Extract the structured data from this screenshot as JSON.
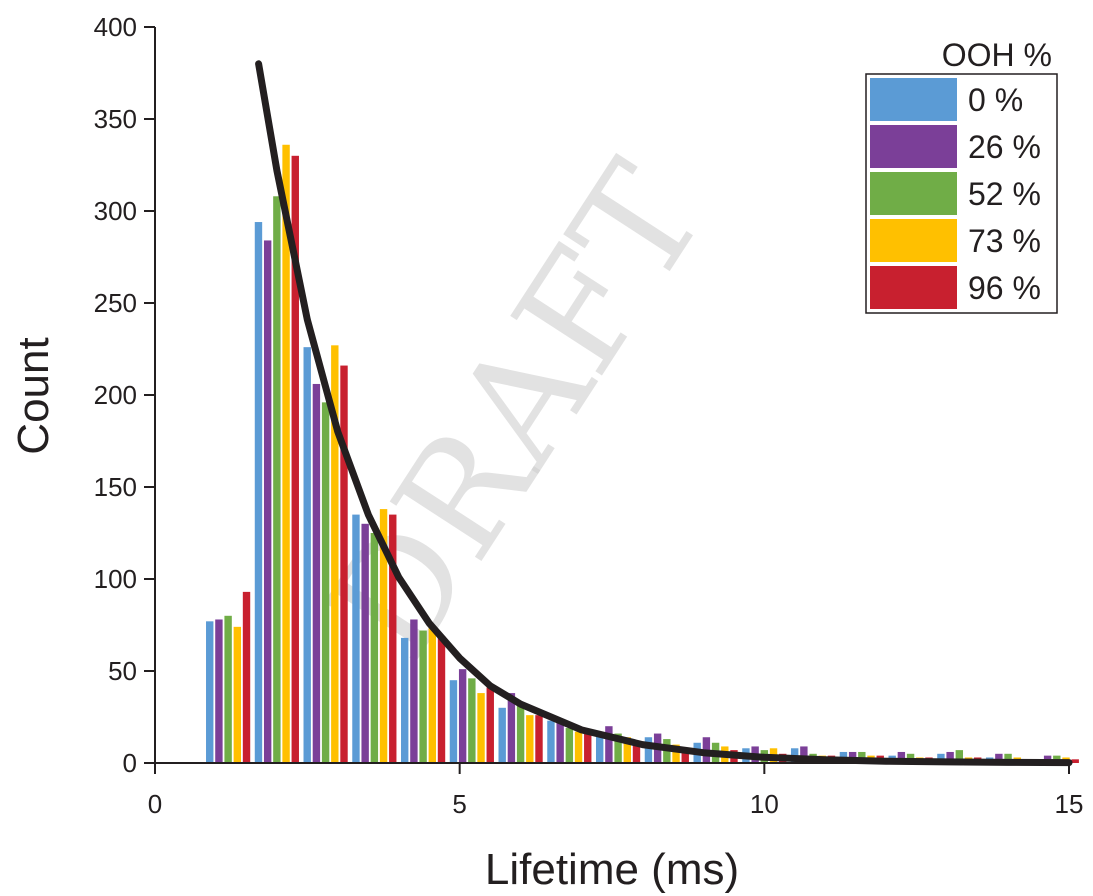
{
  "chart_data": {
    "type": "bar",
    "xlabel": "Lifetime (ms)",
    "ylabel": "Count",
    "xlim": [
      0,
      15
    ],
    "ylim": [
      0,
      400
    ],
    "x_ticks": [
      "0",
      "5",
      "10",
      "15"
    ],
    "y_ticks": [
      "0",
      "50",
      "100",
      "150",
      "200",
      "250",
      "300",
      "350",
      "400"
    ],
    "x_tick_values": [
      0,
      5,
      10,
      15
    ],
    "y_tick_values": [
      0,
      50,
      100,
      150,
      200,
      250,
      300,
      350,
      400
    ],
    "bin_centers": [
      1.2,
      2.0,
      2.8,
      3.6,
      4.4,
      5.2,
      6.0,
      6.8,
      7.6,
      8.4,
      9.2,
      10.0,
      10.8,
      11.6,
      12.4,
      13.2,
      14.0,
      14.8
    ],
    "legend_title": "OOH %",
    "legend_position": "top-right",
    "series": [
      {
        "name": "0 %",
        "color": "#5b9bd5",
        "values": [
          77,
          294,
          226,
          135,
          68,
          45,
          30,
          23,
          17,
          14,
          11,
          8,
          8,
          6,
          4,
          5,
          3,
          2
        ]
      },
      {
        "name": "26 %",
        "color": "#7b3f98",
        "values": [
          78,
          284,
          206,
          130,
          78,
          51,
          38,
          22,
          20,
          16,
          14,
          9,
          9,
          6,
          6,
          6,
          5,
          4
        ]
      },
      {
        "name": "52 %",
        "color": "#70ad47",
        "values": [
          80,
          308,
          196,
          125,
          72,
          46,
          33,
          19,
          16,
          13,
          11,
          7,
          5,
          6,
          5,
          7,
          5,
          4
        ]
      },
      {
        "name": "73 %",
        "color": "#ffc000",
        "values": [
          74,
          336,
          227,
          138,
          74,
          38,
          26,
          17,
          14,
          10,
          9,
          8,
          4,
          4,
          3,
          3,
          3,
          3
        ]
      },
      {
        "name": "96 %",
        "color": "#c8202f",
        "values": [
          93,
          330,
          216,
          135,
          69,
          41,
          26,
          17,
          12,
          8,
          7,
          5,
          4,
          4,
          3,
          3,
          2,
          2
        ]
      }
    ],
    "fit_curve": {
      "color": "#231f20",
      "x": [
        1.7,
        2.0,
        2.5,
        3.0,
        3.5,
        4.0,
        4.5,
        5.0,
        5.5,
        6.0,
        7.0,
        8.0,
        9.0,
        10.0,
        11.0,
        12.0,
        13.0,
        14.0,
        15.0
      ],
      "y": [
        380,
        322,
        241,
        180,
        135,
        101,
        76,
        57,
        42,
        32,
        18,
        10,
        5.6,
        3.1,
        1.8,
        1.0,
        0.6,
        0.3,
        0.2
      ]
    },
    "watermark": "DRAFT"
  }
}
